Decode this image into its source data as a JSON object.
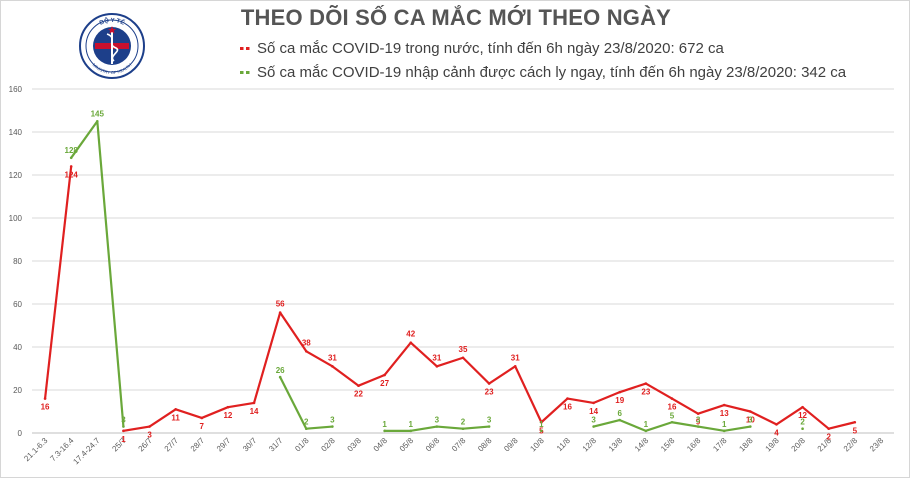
{
  "chart_data": {
    "type": "line",
    "title": "THEO DÕI SỐ CA MẮC MỚI THEO NGÀY",
    "categories": [
      "21.1-6.3",
      "7.3-16.4",
      "17.4-24.7",
      "25/7",
      "26/7",
      "27/7",
      "28/7",
      "29/7",
      "30/7",
      "31/7",
      "01/8",
      "02/8",
      "03/8",
      "04/8",
      "05/8",
      "06/8",
      "07/8",
      "08/8",
      "09/8",
      "10/8",
      "11/8",
      "12/8",
      "13/8",
      "14/8",
      "15/8",
      "16/8",
      "17/8",
      "18/8",
      "19/8",
      "20/8",
      "21/8",
      "22/8",
      "23/8"
    ],
    "ylim": [
      0,
      160
    ],
    "yticks": [
      0,
      20,
      40,
      60,
      80,
      100,
      120,
      140,
      160
    ],
    "grid": true,
    "legend_position": "top",
    "series": [
      {
        "name": "Số ca mắc COVID-19 trong nước, tính đến 6h ngày 23/8/2020: 672 ca",
        "color": "#e02020",
        "values": [
          16,
          124,
          null,
          1,
          3,
          11,
          7,
          12,
          14,
          56,
          38,
          31,
          22,
          27,
          42,
          31,
          35,
          23,
          31,
          5,
          16,
          14,
          19,
          23,
          16,
          9,
          13,
          10,
          4,
          12,
          2,
          5,
          null
        ]
      },
      {
        "name": "Số ca mắc COVID-19 nhập cảnh được cách ly ngay, tính đến 6h ngày 23/8/2020: 342 ca",
        "color": "#6aa83a",
        "values": [
          null,
          128,
          145,
          3,
          null,
          null,
          null,
          null,
          null,
          26,
          2,
          3,
          null,
          1,
          1,
          3,
          2,
          3,
          null,
          1,
          null,
          3,
          6,
          1,
          5,
          3,
          1,
          3,
          null,
          2,
          null,
          null,
          null
        ]
      }
    ]
  },
  "logo": {
    "top_text": "BỘ Y TẾ",
    "bottom_text": "MINISTRY OF HEALTH"
  }
}
